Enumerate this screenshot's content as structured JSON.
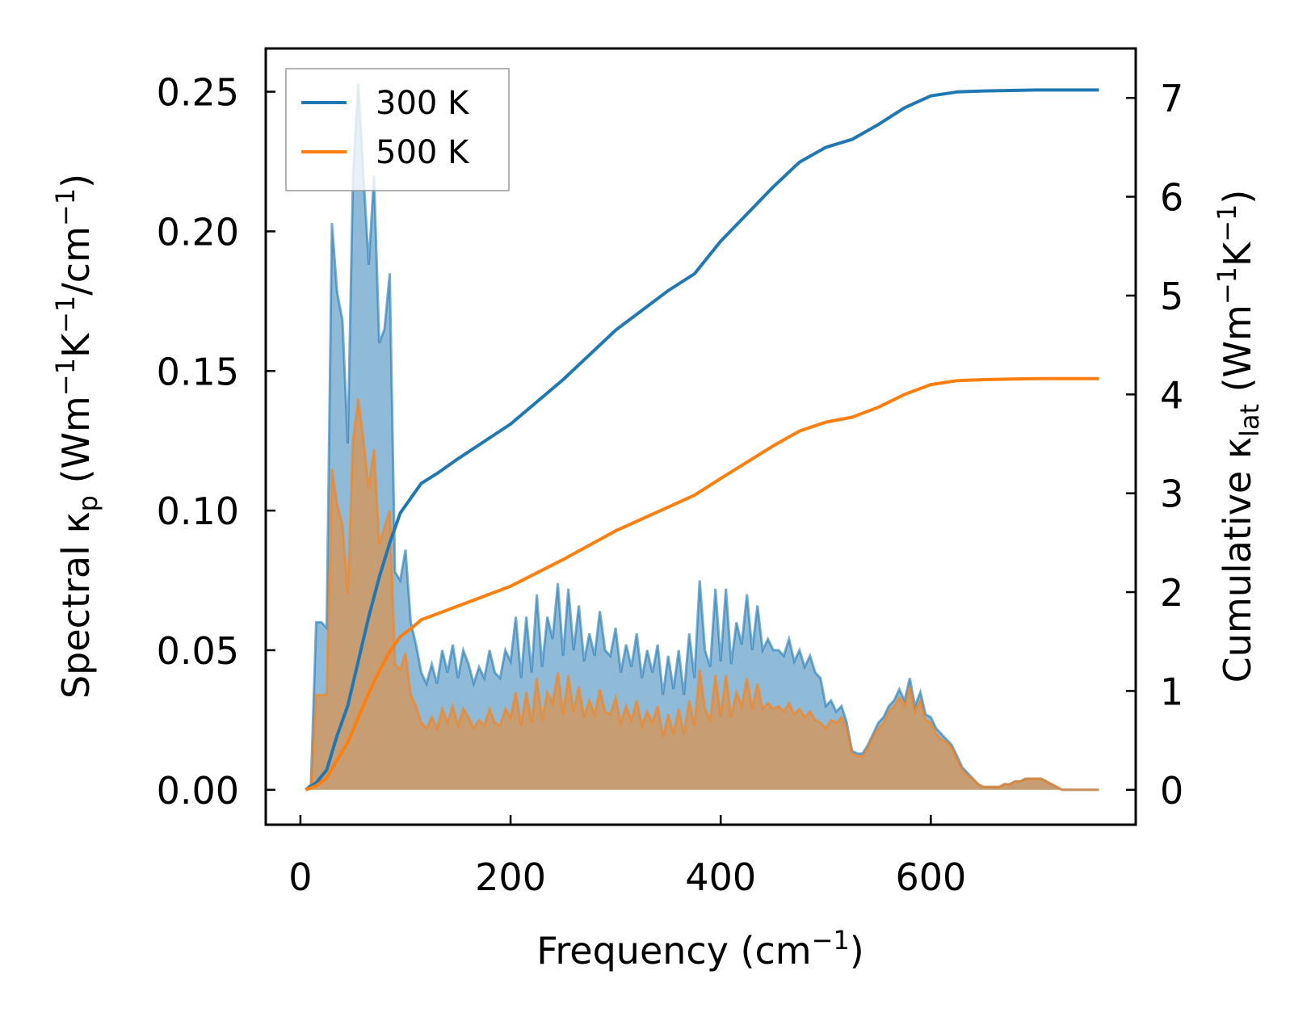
{
  "chart_data": {
    "type": "area",
    "x_axis": {
      "title": "Frequency (cm",
      "title_sup": "−1",
      "title_close": ")",
      "ticks": [
        0,
        200,
        400,
        600
      ],
      "tick_labels": [
        "0",
        "200",
        "400",
        "600"
      ],
      "range": [
        -33,
        795
      ]
    },
    "y_left": {
      "title_main": "Spectral κ",
      "title_sub": "p",
      "title_units_open": " (Wm",
      "title_sup1": "−1",
      "title_k": "K",
      "title_sup2": "−1",
      "title_cm": "/cm",
      "title_sup3": "−1",
      "title_close": ")",
      "ticks": [
        0,
        0.05,
        0.1,
        0.15,
        0.2,
        0.25
      ],
      "tick_labels": [
        "0.00",
        "0.05",
        "0.10",
        "0.15",
        "0.20",
        "0.25"
      ],
      "range": [
        -0.0125,
        0.2655
      ]
    },
    "y_right": {
      "title_main": "Cumulative κ",
      "title_sub": "lat",
      "title_units_open": " (Wm",
      "title_sup1": "−1",
      "title_k": "K",
      "title_sup2": "−1",
      "title_close": ")",
      "ticks": [
        0,
        1,
        2,
        3,
        4,
        5,
        6,
        7
      ],
      "tick_labels": [
        "0",
        "1",
        "2",
        "3",
        "4",
        "5",
        "6",
        "7"
      ],
      "range": [
        -0.353,
        7.5
      ]
    },
    "legend": {
      "position": "top-left",
      "entries": [
        {
          "label": "300 K",
          "color": "#1f77b4"
        },
        {
          "label": "500 K",
          "color": "#ff7f0e"
        }
      ]
    },
    "spectral_x": [
      5,
      10,
      15,
      20,
      25,
      30,
      35,
      40,
      45,
      50,
      55,
      60,
      65,
      70,
      75,
      80,
      85,
      90,
      95,
      100,
      105,
      110,
      115,
      120,
      125,
      130,
      135,
      140,
      145,
      150,
      155,
      160,
      165,
      170,
      175,
      180,
      185,
      190,
      195,
      200,
      205,
      210,
      215,
      220,
      225,
      230,
      235,
      240,
      245,
      250,
      255,
      260,
      265,
      270,
      275,
      280,
      285,
      290,
      295,
      300,
      305,
      310,
      315,
      320,
      325,
      330,
      335,
      340,
      345,
      350,
      355,
      360,
      365,
      370,
      375,
      380,
      385,
      390,
      395,
      400,
      405,
      410,
      415,
      420,
      425,
      430,
      435,
      440,
      445,
      450,
      455,
      460,
      465,
      470,
      475,
      480,
      485,
      490,
      495,
      500,
      505,
      510,
      515,
      520,
      525,
      530,
      535,
      540,
      545,
      550,
      555,
      560,
      565,
      570,
      575,
      580,
      585,
      590,
      595,
      600,
      605,
      610,
      615,
      620,
      625,
      630,
      635,
      640,
      645,
      650,
      655,
      660,
      665,
      670,
      675,
      680,
      685,
      690,
      695,
      700,
      705,
      710,
      715,
      720,
      725,
      730,
      735,
      740,
      745,
      750,
      755,
      760
    ],
    "series": [
      {
        "name": "300 K",
        "color": "#1f77b4",
        "spectral": [
          0,
          0.002,
          0.06,
          0.06,
          0.058,
          0.203,
          0.178,
          0.168,
          0.124,
          0.22,
          0.253,
          0.22,
          0.188,
          0.22,
          0.16,
          0.165,
          0.185,
          0.078,
          0.075,
          0.086,
          0.06,
          0.052,
          0.042,
          0.038,
          0.045,
          0.038,
          0.05,
          0.042,
          0.052,
          0.04,
          0.05,
          0.045,
          0.038,
          0.044,
          0.04,
          0.05,
          0.042,
          0.04,
          0.05,
          0.046,
          0.062,
          0.04,
          0.062,
          0.042,
          0.07,
          0.044,
          0.062,
          0.054,
          0.074,
          0.048,
          0.072,
          0.05,
          0.066,
          0.046,
          0.056,
          0.048,
          0.064,
          0.05,
          0.048,
          0.058,
          0.042,
          0.052,
          0.044,
          0.056,
          0.04,
          0.05,
          0.042,
          0.052,
          0.034,
          0.048,
          0.036,
          0.05,
          0.034,
          0.056,
          0.04,
          0.075,
          0.05,
          0.044,
          0.072,
          0.046,
          0.072,
          0.045,
          0.06,
          0.052,
          0.07,
          0.05,
          0.066,
          0.05,
          0.054,
          0.05,
          0.05,
          0.048,
          0.054,
          0.046,
          0.05,
          0.044,
          0.048,
          0.042,
          0.04,
          0.03,
          0.032,
          0.028,
          0.03,
          0.024,
          0.014,
          0.013,
          0.013,
          0.016,
          0.02,
          0.024,
          0.026,
          0.03,
          0.032,
          0.036,
          0.032,
          0.04,
          0.03,
          0.035,
          0.027,
          0.026,
          0.022,
          0.02,
          0.018,
          0.016,
          0.012,
          0.008,
          0.006,
          0.004,
          0.002,
          0.001,
          0.001,
          0.001,
          0.001,
          0.002,
          0.002,
          0.003,
          0.003,
          0.004,
          0.004,
          0.004,
          0.004,
          0.003,
          0.002,
          0.001,
          0,
          0,
          0,
          0,
          0,
          0,
          0,
          0
        ],
        "cumulative": [
          {
            "x": 5,
            "y": 0
          },
          {
            "x": 15,
            "y": 0.07
          },
          {
            "x": 25,
            "y": 0.2
          },
          {
            "x": 35,
            "y": 0.55
          },
          {
            "x": 45,
            "y": 0.85
          },
          {
            "x": 55,
            "y": 1.3
          },
          {
            "x": 65,
            "y": 1.75
          },
          {
            "x": 75,
            "y": 2.15
          },
          {
            "x": 85,
            "y": 2.5
          },
          {
            "x": 95,
            "y": 2.8
          },
          {
            "x": 105,
            "y": 2.95
          },
          {
            "x": 115,
            "y": 3.1
          },
          {
            "x": 130,
            "y": 3.2
          },
          {
            "x": 150,
            "y": 3.35
          },
          {
            "x": 200,
            "y": 3.7
          },
          {
            "x": 250,
            "y": 4.15
          },
          {
            "x": 300,
            "y": 4.65
          },
          {
            "x": 350,
            "y": 5.05
          },
          {
            "x": 375,
            "y": 5.22
          },
          {
            "x": 400,
            "y": 5.55
          },
          {
            "x": 450,
            "y": 6.1
          },
          {
            "x": 475,
            "y": 6.35
          },
          {
            "x": 500,
            "y": 6.5
          },
          {
            "x": 525,
            "y": 6.58
          },
          {
            "x": 550,
            "y": 6.73
          },
          {
            "x": 575,
            "y": 6.9
          },
          {
            "x": 600,
            "y": 7.02
          },
          {
            "x": 625,
            "y": 7.06
          },
          {
            "x": 650,
            "y": 7.07
          },
          {
            "x": 700,
            "y": 7.08
          },
          {
            "x": 760,
            "y": 7.08
          }
        ]
      },
      {
        "name": "500 K",
        "color": "#ff7f0e",
        "spectral": [
          0,
          0.001,
          0.034,
          0.034,
          0.034,
          0.115,
          0.102,
          0.095,
          0.07,
          0.125,
          0.14,
          0.125,
          0.108,
          0.122,
          0.088,
          0.094,
          0.1,
          0.045,
          0.043,
          0.049,
          0.034,
          0.03,
          0.024,
          0.022,
          0.026,
          0.022,
          0.029,
          0.024,
          0.03,
          0.023,
          0.029,
          0.026,
          0.022,
          0.025,
          0.023,
          0.029,
          0.024,
          0.023,
          0.029,
          0.026,
          0.035,
          0.023,
          0.035,
          0.024,
          0.04,
          0.025,
          0.035,
          0.031,
          0.042,
          0.027,
          0.041,
          0.028,
          0.037,
          0.026,
          0.032,
          0.027,
          0.036,
          0.028,
          0.027,
          0.033,
          0.024,
          0.03,
          0.025,
          0.032,
          0.023,
          0.028,
          0.024,
          0.03,
          0.019,
          0.027,
          0.02,
          0.029,
          0.02,
          0.032,
          0.023,
          0.043,
          0.029,
          0.025,
          0.041,
          0.026,
          0.041,
          0.026,
          0.035,
          0.03,
          0.04,
          0.029,
          0.038,
          0.029,
          0.031,
          0.029,
          0.03,
          0.028,
          0.031,
          0.027,
          0.029,
          0.026,
          0.028,
          0.025,
          0.024,
          0.022,
          0.025,
          0.024,
          0.026,
          0.022,
          0.013,
          0.012,
          0.012,
          0.015,
          0.019,
          0.022,
          0.024,
          0.028,
          0.03,
          0.033,
          0.03,
          0.037,
          0.028,
          0.032,
          0.025,
          0.024,
          0.02,
          0.018,
          0.017,
          0.015,
          0.011,
          0.007,
          0.005,
          0.004,
          0.002,
          0.001,
          0.001,
          0.001,
          0.001,
          0.002,
          0.002,
          0.003,
          0.003,
          0.004,
          0.004,
          0.004,
          0.004,
          0.003,
          0.002,
          0.001,
          0,
          0,
          0,
          0,
          0,
          0,
          0,
          0
        ],
        "cumulative": [
          {
            "x": 5,
            "y": 0
          },
          {
            "x": 15,
            "y": 0.04
          },
          {
            "x": 25,
            "y": 0.12
          },
          {
            "x": 35,
            "y": 0.3
          },
          {
            "x": 45,
            "y": 0.48
          },
          {
            "x": 55,
            "y": 0.73
          },
          {
            "x": 65,
            "y": 0.98
          },
          {
            "x": 75,
            "y": 1.2
          },
          {
            "x": 85,
            "y": 1.4
          },
          {
            "x": 95,
            "y": 1.55
          },
          {
            "x": 105,
            "y": 1.63
          },
          {
            "x": 115,
            "y": 1.72
          },
          {
            "x": 130,
            "y": 1.78
          },
          {
            "x": 150,
            "y": 1.86
          },
          {
            "x": 200,
            "y": 2.06
          },
          {
            "x": 250,
            "y": 2.33
          },
          {
            "x": 300,
            "y": 2.62
          },
          {
            "x": 350,
            "y": 2.86
          },
          {
            "x": 375,
            "y": 2.98
          },
          {
            "x": 400,
            "y": 3.15
          },
          {
            "x": 450,
            "y": 3.48
          },
          {
            "x": 475,
            "y": 3.63
          },
          {
            "x": 500,
            "y": 3.72
          },
          {
            "x": 525,
            "y": 3.77
          },
          {
            "x": 550,
            "y": 3.87
          },
          {
            "x": 575,
            "y": 4.0
          },
          {
            "x": 600,
            "y": 4.1
          },
          {
            "x": 625,
            "y": 4.14
          },
          {
            "x": 650,
            "y": 4.15
          },
          {
            "x": 700,
            "y": 4.16
          },
          {
            "x": 760,
            "y": 4.16
          }
        ]
      }
    ]
  }
}
